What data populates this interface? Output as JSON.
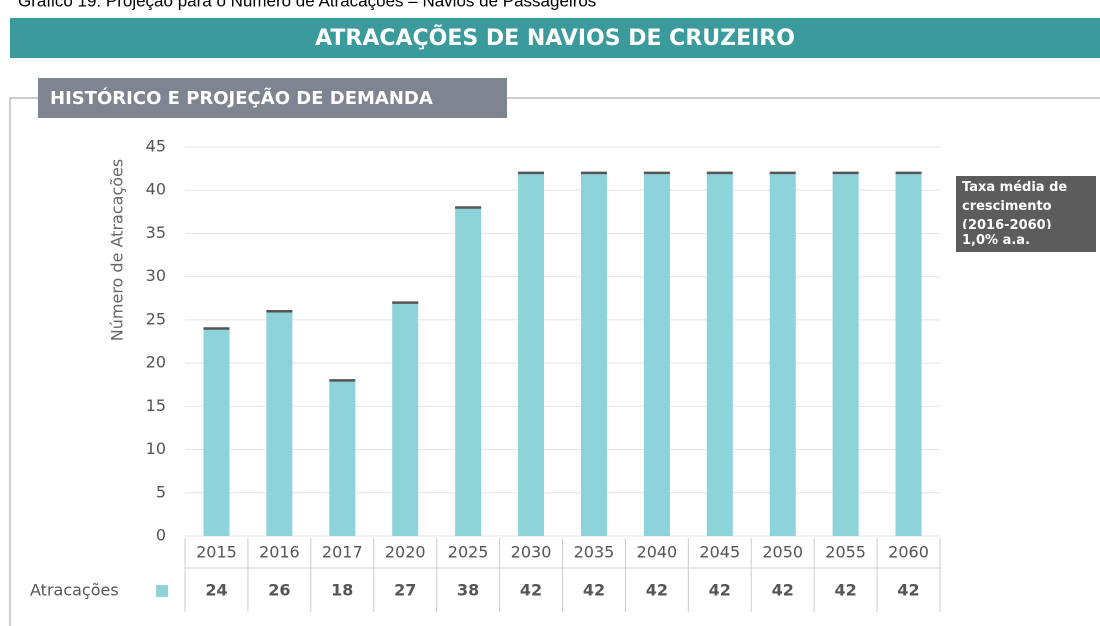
{
  "chart_data": {
    "type": "bar",
    "caption": "Gráfico 19: Projeção para o Número de Atracações – Navios de Passageiros",
    "title": "ATRACAÇÕES DE NAVIOS DE CRUZEIRO",
    "subtitle": "HISTÓRICO E PROJEÇÃO DE DEMANDA",
    "y_label": "Número de Atracações",
    "categories": [
      "2015",
      "2016",
      "2017",
      "2020",
      "2025",
      "2030",
      "2035",
      "2040",
      "2045",
      "2050",
      "2055",
      "2060"
    ],
    "series": [
      {
        "name": "Atracações",
        "color": "#8dd3d9",
        "values": [
          24,
          26,
          18,
          27,
          38,
          42,
          42,
          42,
          42,
          42,
          42,
          42
        ]
      }
    ],
    "ylim": [
      0,
      45
    ],
    "yticks": [
      0,
      5,
      10,
      15,
      20,
      25,
      30,
      35,
      40,
      45
    ],
    "grid": true,
    "annotations": [
      "Taxa média de crescimento (2016-2060)",
      "1,0% a.a."
    ]
  }
}
